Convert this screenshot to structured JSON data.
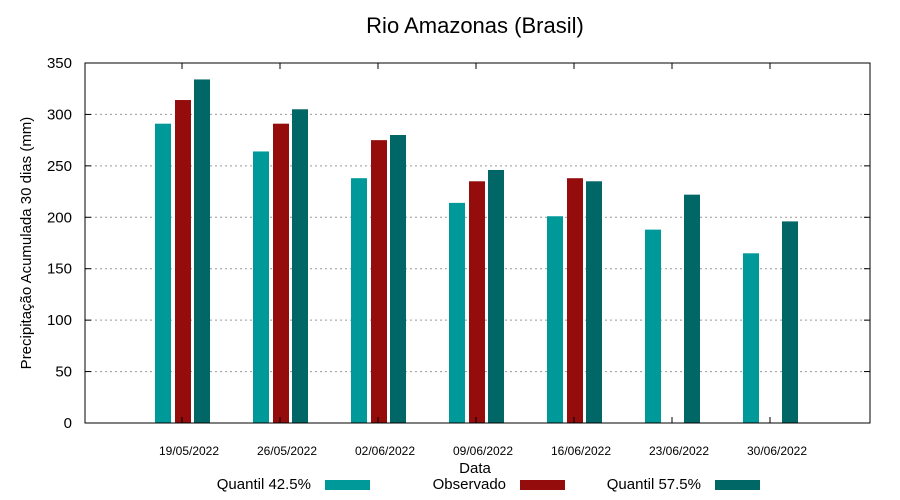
{
  "chart_data": {
    "type": "bar",
    "title": "Rio Amazonas (Brasil)",
    "xlabel": "Data",
    "ylabel": "Precipitação Acumulada 30 dias (mm)",
    "ylim": [
      0,
      350
    ],
    "yticks": [
      0,
      50,
      100,
      150,
      200,
      250,
      300,
      350
    ],
    "grid": true,
    "legend_placement": "bottom",
    "categories": [
      "19/05/2022",
      "26/05/2022",
      "02/06/2022",
      "09/06/2022",
      "16/06/2022",
      "23/06/2022",
      "30/06/2022"
    ],
    "series": [
      {
        "name": "Quantil 42.5%",
        "color": "#009999",
        "values": [
          291,
          264,
          238,
          214,
          201,
          188,
          165
        ]
      },
      {
        "name": "Observado",
        "color": "#940c0c",
        "values": [
          314,
          291,
          275,
          235,
          238,
          null,
          null
        ]
      },
      {
        "name": "Quantil 57.5%",
        "color": "#006666",
        "values": [
          334,
          305,
          280,
          246,
          235,
          222,
          196
        ]
      }
    ]
  }
}
